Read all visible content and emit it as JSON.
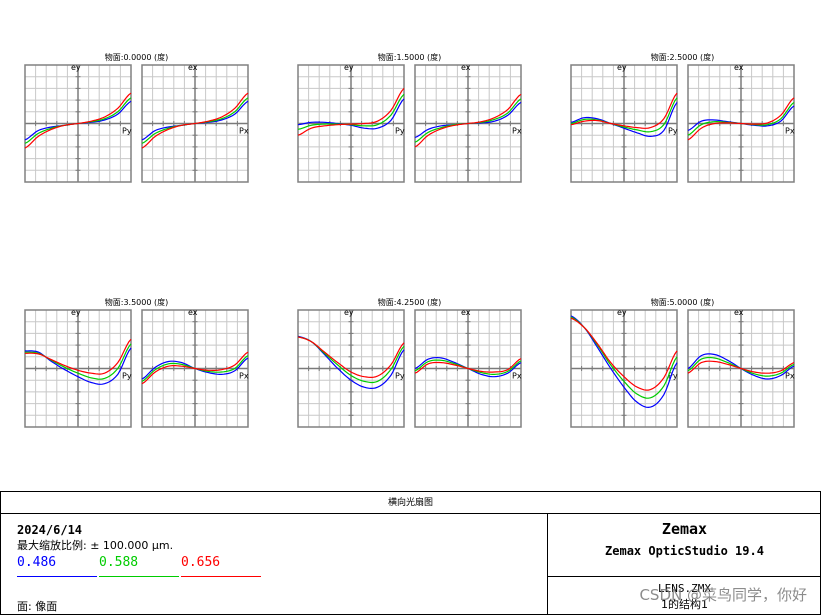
{
  "chart_data": {
    "type": "line",
    "title": "横向光扇图",
    "wavelengths": [
      {
        "label": "0.486",
        "color": "#0000ff"
      },
      {
        "label": "0.588",
        "color": "#00cc00"
      },
      {
        "label": "0.656",
        "color": "#ff0000"
      }
    ],
    "pupil_x": [
      -1,
      -0.75,
      -0.5,
      -0.25,
      0,
      0.25,
      0.5,
      0.75,
      1
    ],
    "ylim": [
      -1,
      1
    ],
    "tangential_axis": {
      "ylabel": "ey",
      "xlabel": "Py"
    },
    "sagittal_axis": {
      "ylabel": "ex",
      "xlabel": "Px"
    },
    "grid": true,
    "fields": [
      {
        "title": "物面:0.0000 (度)",
        "tangential": [
          {
            "name": "0.486",
            "values": [
              -0.28,
              -0.12,
              -0.06,
              -0.03,
              0.0,
              0.02,
              0.06,
              0.16,
              0.38
            ]
          },
          {
            "name": "0.588",
            "values": [
              -0.34,
              -0.17,
              -0.08,
              -0.03,
              0.0,
              0.03,
              0.08,
              0.2,
              0.44
            ]
          },
          {
            "name": "0.656",
            "values": [
              -0.42,
              -0.22,
              -0.1,
              -0.03,
              0.0,
              0.04,
              0.11,
              0.26,
              0.52
            ]
          }
        ],
        "sagittal": [
          {
            "name": "0.486",
            "values": [
              -0.28,
              -0.12,
              -0.06,
              -0.03,
              0.0,
              0.02,
              0.06,
              0.16,
              0.38
            ]
          },
          {
            "name": "0.588",
            "values": [
              -0.34,
              -0.17,
              -0.08,
              -0.03,
              0.0,
              0.03,
              0.08,
              0.2,
              0.44
            ]
          },
          {
            "name": "0.656",
            "values": [
              -0.42,
              -0.22,
              -0.1,
              -0.03,
              0.0,
              0.04,
              0.11,
              0.26,
              0.52
            ]
          }
        ]
      },
      {
        "title": "物面:1.5000 (度)",
        "tangential": [
          {
            "name": "0.486",
            "values": [
              -0.02,
              0.02,
              0.02,
              0.0,
              -0.03,
              -0.08,
              -0.08,
              0.05,
              0.42
            ]
          },
          {
            "name": "0.588",
            "values": [
              -0.1,
              -0.03,
              -0.01,
              -0.01,
              -0.02,
              -0.04,
              -0.02,
              0.14,
              0.5
            ]
          },
          {
            "name": "0.656",
            "values": [
              -0.2,
              -0.08,
              -0.04,
              -0.02,
              -0.01,
              0.0,
              0.04,
              0.22,
              0.6
            ]
          }
        ],
        "sagittal": [
          {
            "name": "0.486",
            "values": [
              -0.24,
              -0.1,
              -0.04,
              -0.02,
              0.0,
              0.01,
              0.04,
              0.14,
              0.36
            ]
          },
          {
            "name": "0.588",
            "values": [
              -0.32,
              -0.15,
              -0.07,
              -0.02,
              0.0,
              0.02,
              0.07,
              0.18,
              0.42
            ]
          },
          {
            "name": "0.656",
            "values": [
              -0.4,
              -0.2,
              -0.09,
              -0.03,
              0.0,
              0.03,
              0.1,
              0.24,
              0.5
            ]
          }
        ]
      },
      {
        "title": "物面:2.5000 (度)",
        "tangential": [
          {
            "name": "0.486",
            "values": [
              0.02,
              0.1,
              0.08,
              0.0,
              -0.08,
              -0.16,
              -0.22,
              -0.12,
              0.36
            ]
          },
          {
            "name": "0.588",
            "values": [
              0.0,
              0.07,
              0.06,
              0.0,
              -0.06,
              -0.11,
              -0.14,
              -0.02,
              0.44
            ]
          },
          {
            "name": "0.656",
            "values": [
              -0.02,
              0.04,
              0.05,
              0.0,
              -0.04,
              -0.07,
              -0.07,
              0.08,
              0.52
            ]
          }
        ],
        "sagittal": [
          {
            "name": "0.486",
            "values": [
              -0.12,
              0.04,
              0.06,
              0.03,
              0.0,
              -0.03,
              -0.04,
              0.04,
              0.3
            ]
          },
          {
            "name": "0.588",
            "values": [
              -0.2,
              -0.02,
              0.03,
              0.02,
              0.0,
              -0.02,
              -0.02,
              0.08,
              0.36
            ]
          },
          {
            "name": "0.656",
            "values": [
              -0.28,
              -0.08,
              0.0,
              0.01,
              0.0,
              -0.01,
              0.01,
              0.14,
              0.44
            ]
          }
        ]
      },
      {
        "title": "物面:3.5000 (度)",
        "tangential": [
          {
            "name": "0.486",
            "values": [
              0.3,
              0.28,
              0.12,
              -0.02,
              -0.14,
              -0.24,
              -0.26,
              -0.1,
              0.35
            ]
          },
          {
            "name": "0.588",
            "values": [
              0.28,
              0.26,
              0.14,
              0.02,
              -0.08,
              -0.16,
              -0.17,
              0.0,
              0.42
            ]
          },
          {
            "name": "0.656",
            "values": [
              0.26,
              0.25,
              0.15,
              0.05,
              -0.03,
              -0.08,
              -0.08,
              0.1,
              0.5
            ]
          }
        ],
        "sagittal": [
          {
            "name": "0.486",
            "values": [
              -0.18,
              0.02,
              0.12,
              0.1,
              0.0,
              -0.07,
              -0.1,
              -0.04,
              0.18
            ]
          },
          {
            "name": "0.588",
            "values": [
              -0.22,
              -0.02,
              0.08,
              0.07,
              0.0,
              -0.05,
              -0.06,
              0.0,
              0.22
            ]
          },
          {
            "name": "0.656",
            "values": [
              -0.26,
              -0.06,
              0.04,
              0.04,
              0.0,
              -0.03,
              -0.02,
              0.06,
              0.28
            ]
          }
        ]
      },
      {
        "title": "物面:4.2500 (度)",
        "tangential": [
          {
            "name": "0.486",
            "values": [
              0.55,
              0.46,
              0.24,
              0.0,
              -0.2,
              -0.32,
              -0.32,
              -0.12,
              0.32
            ]
          },
          {
            "name": "0.588",
            "values": [
              0.54,
              0.46,
              0.26,
              0.06,
              -0.12,
              -0.22,
              -0.22,
              -0.02,
              0.38
            ]
          },
          {
            "name": "0.656",
            "values": [
              0.54,
              0.46,
              0.28,
              0.1,
              -0.06,
              -0.14,
              -0.13,
              0.06,
              0.44
            ]
          }
        ],
        "sagittal": [
          {
            "name": "0.486",
            "values": [
              0.0,
              0.16,
              0.18,
              0.1,
              0.0,
              -0.1,
              -0.14,
              -0.08,
              0.1
            ]
          },
          {
            "name": "0.588",
            "values": [
              -0.04,
              0.12,
              0.14,
              0.08,
              0.0,
              -0.07,
              -0.1,
              -0.05,
              0.13
            ]
          },
          {
            "name": "0.656",
            "values": [
              -0.08,
              0.08,
              0.1,
              0.06,
              0.0,
              -0.05,
              -0.06,
              -0.02,
              0.17
            ]
          }
        ]
      },
      {
        "title": "物面:5.0000 (度)",
        "tangential": [
          {
            "name": "0.486",
            "values": [
              0.9,
              0.7,
              0.36,
              0.0,
              -0.32,
              -0.58,
              -0.66,
              -0.45,
              0.1
            ]
          },
          {
            "name": "0.588",
            "values": [
              0.88,
              0.7,
              0.4,
              0.06,
              -0.22,
              -0.44,
              -0.5,
              -0.3,
              0.2
            ]
          },
          {
            "name": "0.656",
            "values": [
              0.86,
              0.7,
              0.42,
              0.1,
              -0.14,
              -0.32,
              -0.36,
              -0.16,
              0.3
            ]
          }
        ],
        "sagittal": [
          {
            "name": "0.486",
            "values": [
              0.0,
              0.22,
              0.24,
              0.14,
              0.0,
              -0.12,
              -0.18,
              -0.12,
              0.04
            ]
          },
          {
            "name": "0.588",
            "values": [
              -0.04,
              0.16,
              0.18,
              0.1,
              0.0,
              -0.09,
              -0.13,
              -0.08,
              0.07
            ]
          },
          {
            "name": "0.656",
            "values": [
              -0.08,
              0.1,
              0.12,
              0.07,
              0.0,
              -0.06,
              -0.08,
              -0.04,
              0.1
            ]
          }
        ]
      }
    ]
  },
  "info": {
    "title": "横向光扇图",
    "date": "2024/6/14",
    "max_scale": "最大缩放比例: ± 100.000 µm.",
    "surface": "面: 像面",
    "brand": "Zemax",
    "product": "Zemax OpticStudio 19.4",
    "file": "LENS.ZMX",
    "config": "1的结构1"
  },
  "watermark": "CSDN @菜鸟同学，你好"
}
